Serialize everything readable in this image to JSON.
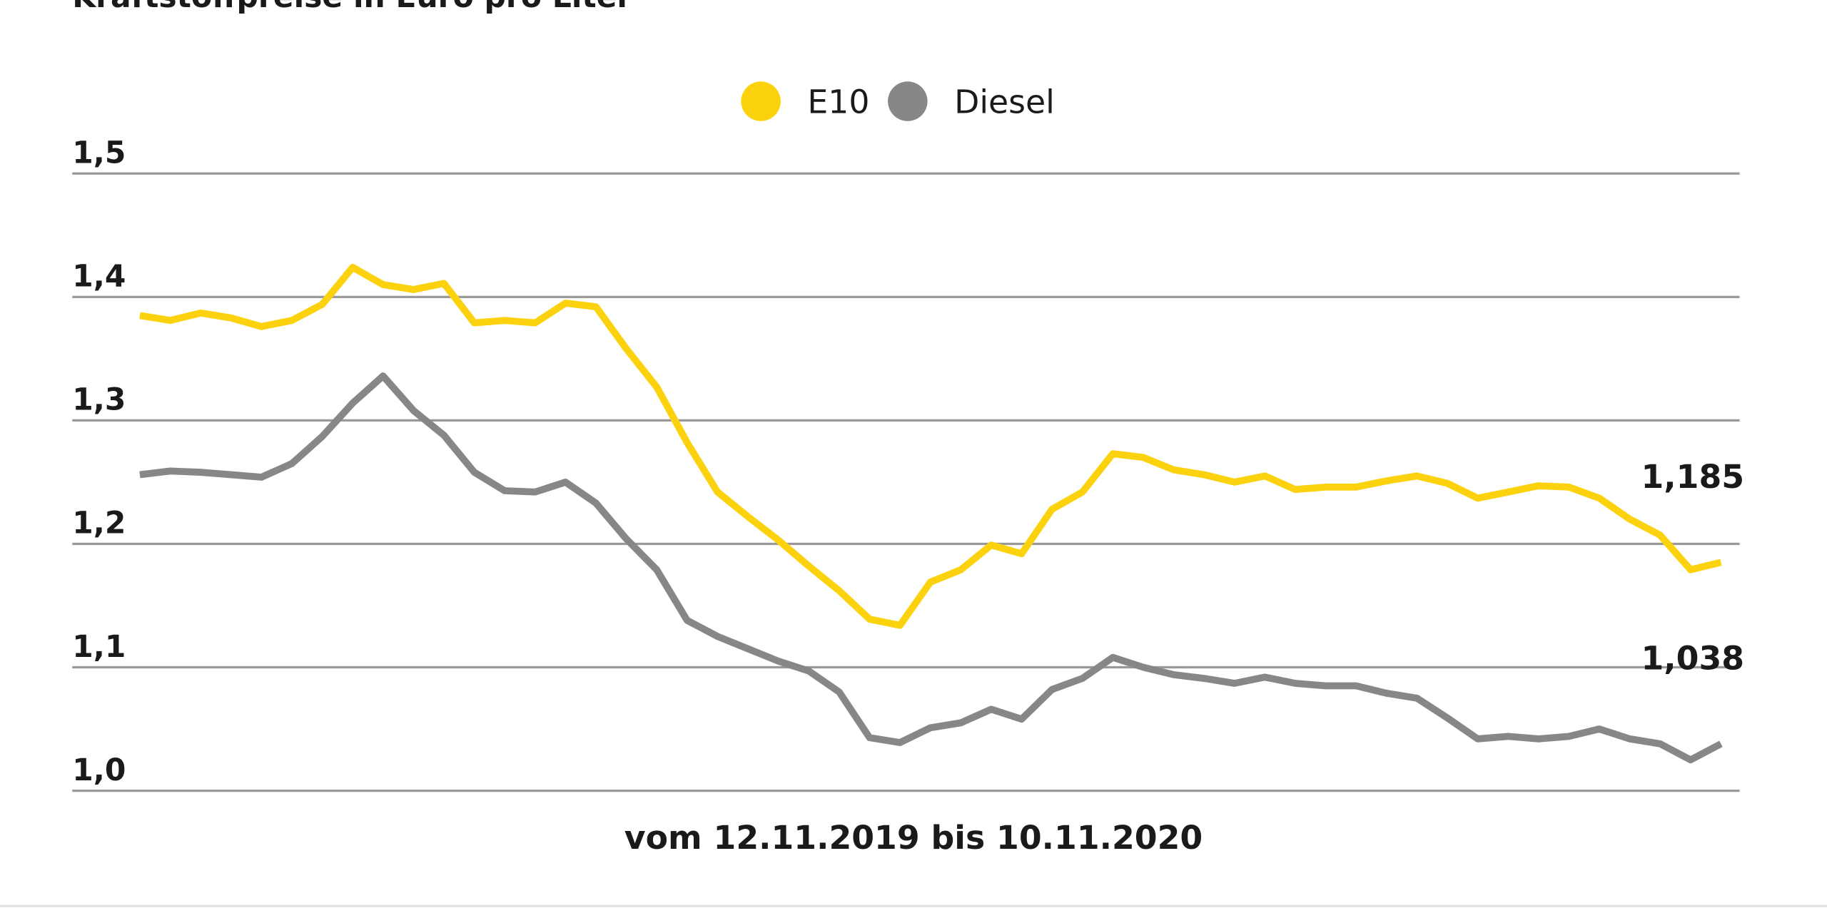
{
  "chart_data": {
    "type": "line",
    "title": "Kraftstoffpreise in Euro pro Liter",
    "xlabel": "vom 12.11.2019 bis 10.11.2020",
    "categories": [
      null,
      null,
      null,
      null,
      null,
      null,
      null,
      null,
      null,
      null,
      null,
      null,
      null,
      null,
      null,
      null,
      null,
      null,
      null,
      null,
      null,
      null,
      null,
      null,
      null,
      null,
      null,
      null,
      null,
      null,
      null,
      null,
      null,
      null,
      null,
      null,
      null,
      null,
      null,
      null,
      null,
      null,
      null,
      null,
      null,
      null,
      null,
      null,
      null,
      null,
      null,
      null,
      null
    ],
    "series": [
      {
        "name": "E10",
        "color": "#fcd20f",
        "values": [
          1.385,
          1.381,
          1.387,
          1.383,
          1.376,
          1.381,
          1.394,
          1.424,
          1.41,
          1.406,
          1.411,
          1.379,
          1.381,
          1.379,
          1.395,
          1.392,
          1.358,
          1.327,
          1.282,
          1.242,
          1.222,
          1.203,
          1.182,
          1.162,
          1.139,
          1.134,
          1.169,
          1.179,
          1.199,
          1.192,
          1.228,
          1.242,
          1.273,
          1.27,
          1.26,
          1.256,
          1.25,
          1.255,
          1.244,
          1.246,
          1.246,
          1.251,
          1.255,
          1.249,
          1.237,
          1.242,
          1.247,
          1.246,
          1.237,
          1.22,
          1.207,
          1.179,
          1.185
        ],
        "value_labels": [
          null,
          null,
          null,
          null,
          null,
          null,
          null,
          null,
          null,
          null,
          null,
          null,
          null,
          null,
          null,
          null,
          null,
          null,
          null,
          null,
          null,
          null,
          null,
          null,
          null,
          null,
          null,
          null,
          null,
          null,
          null,
          null,
          null,
          null,
          null,
          null,
          null,
          null,
          null,
          null,
          null,
          null,
          null,
          null,
          null,
          null,
          null,
          null,
          null,
          null,
          null,
          null,
          "1,185"
        ]
      },
      {
        "name": "Diesel",
        "color": "#878787",
        "values": [
          1.256,
          1.259,
          1.258,
          1.256,
          1.254,
          1.265,
          1.287,
          1.314,
          1.336,
          1.308,
          1.288,
          1.258,
          1.243,
          1.242,
          1.25,
          1.233,
          1.204,
          1.179,
          1.138,
          1.125,
          1.115,
          1.105,
          1.097,
          1.08,
          1.043,
          1.039,
          1.051,
          1.055,
          1.066,
          1.058,
          1.082,
          1.091,
          1.108,
          1.1,
          1.094,
          1.091,
          1.087,
          1.092,
          1.087,
          1.085,
          1.085,
          1.079,
          1.075,
          1.059,
          1.042,
          1.044,
          1.042,
          1.044,
          1.05,
          1.042,
          1.038,
          1.025,
          1.038
        ],
        "value_labels": [
          null,
          null,
          null,
          null,
          null,
          null,
          null,
          null,
          null,
          null,
          null,
          null,
          null,
          null,
          null,
          null,
          null,
          null,
          null,
          null,
          null,
          null,
          null,
          null,
          null,
          null,
          null,
          null,
          null,
          null,
          null,
          null,
          null,
          null,
          null,
          null,
          null,
          null,
          null,
          null,
          null,
          null,
          null,
          null,
          null,
          null,
          null,
          null,
          null,
          null,
          null,
          null,
          "1,038"
        ]
      }
    ],
    "ylim": [
      1.0,
      1.5
    ],
    "yticks": [
      {
        "value": 1.0,
        "label": "1,0"
      },
      {
        "value": 1.1,
        "label": "1,1"
      },
      {
        "value": 1.2,
        "label": "1,2"
      },
      {
        "value": 1.3,
        "label": "1,3"
      },
      {
        "value": 1.4,
        "label": "1,4"
      },
      {
        "value": 1.5,
        "label": "1,5"
      }
    ],
    "grid": true,
    "legend": "top"
  }
}
